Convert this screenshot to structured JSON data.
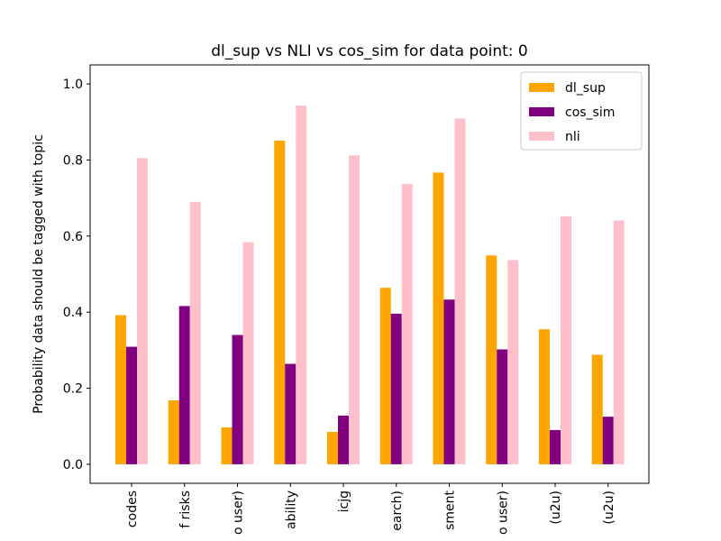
{
  "chart_data": {
    "type": "bar",
    "title": "dl_sup vs NLI vs cos_sim for data point: 0",
    "xlabel": "",
    "ylabel": "Probability data should be tagged with topic",
    "ylim": [
      -0.05,
      1.05
    ],
    "yticks": [
      "0.0",
      "0.2",
      "0.4",
      "0.6",
      "0.8",
      "1.0"
    ],
    "categories": [
      "codes",
      "f risks",
      "o user)",
      "ability",
      "icjg",
      "earch)",
      "sment",
      "o user)",
      "(u2u)",
      "(u2u)"
    ],
    "series": [
      {
        "name": "dl_sup",
        "color": "#ffa500",
        "values": [
          0.392,
          0.168,
          0.097,
          0.851,
          0.085,
          0.464,
          0.767,
          0.549,
          0.355,
          0.288
        ]
      },
      {
        "name": "cos_sim",
        "color": "#800080",
        "values": [
          0.309,
          0.416,
          0.34,
          0.264,
          0.128,
          0.396,
          0.433,
          0.302,
          0.09,
          0.125
        ]
      },
      {
        "name": "nli",
        "color": "#ffc0cb",
        "values": [
          0.805,
          0.69,
          0.584,
          0.943,
          0.812,
          0.737,
          0.909,
          0.537,
          0.652,
          0.641
        ]
      }
    ],
    "grid": false,
    "legend_position": "top-right"
  }
}
